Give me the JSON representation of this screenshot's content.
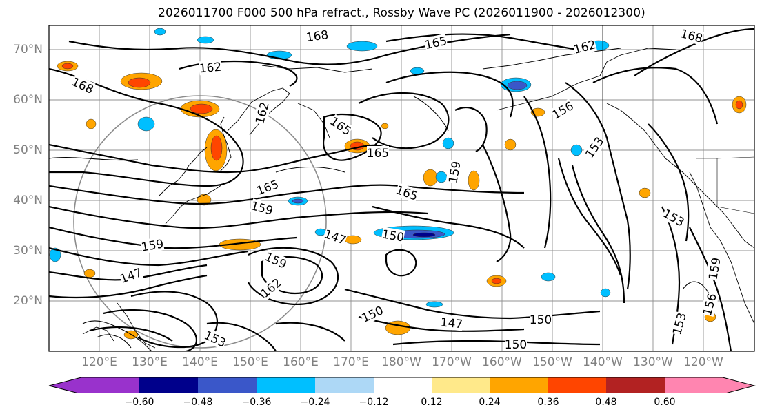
{
  "title": "2026011700 F000 500 hPa refract., Rossby Wave PC (2026011900 - 2026012300)",
  "lat_labels": [
    "70°N",
    "60°N",
    "50°N",
    "40°N",
    "30°N",
    "20°N"
  ],
  "lon_labels": [
    "120°E",
    "130°E",
    "140°E",
    "150°E",
    "160°E",
    "170°E",
    "180°W",
    "170°W",
    "160°W",
    "150°W",
    "140°W",
    "130°W",
    "120°W"
  ],
  "contour_labels": [
    "168",
    "165",
    "168",
    "162",
    "162",
    "168",
    "162",
    "165",
    "165",
    "156",
    "153",
    "165",
    "159",
    "165",
    "159",
    "159",
    "153",
    "150",
    "150",
    "147",
    "159",
    "162",
    "150",
    "147",
    "150",
    "147",
    "153",
    "159",
    "156",
    "153"
  ],
  "colorbar": {
    "tick_labels": [
      "−0.60",
      "−0.48",
      "−0.36",
      "−0.24",
      "−0.12",
      "0.12",
      "0.24",
      "0.36",
      "0.48",
      "0.60"
    ],
    "colors": [
      "#9932cc",
      "#00008b",
      "#3a57c9",
      "#00bfff",
      "#add8f6",
      "#ffffff",
      "#ffe98a",
      "#ffa500",
      "#ff4500",
      "#b22222",
      "#ff85b0"
    ]
  }
}
